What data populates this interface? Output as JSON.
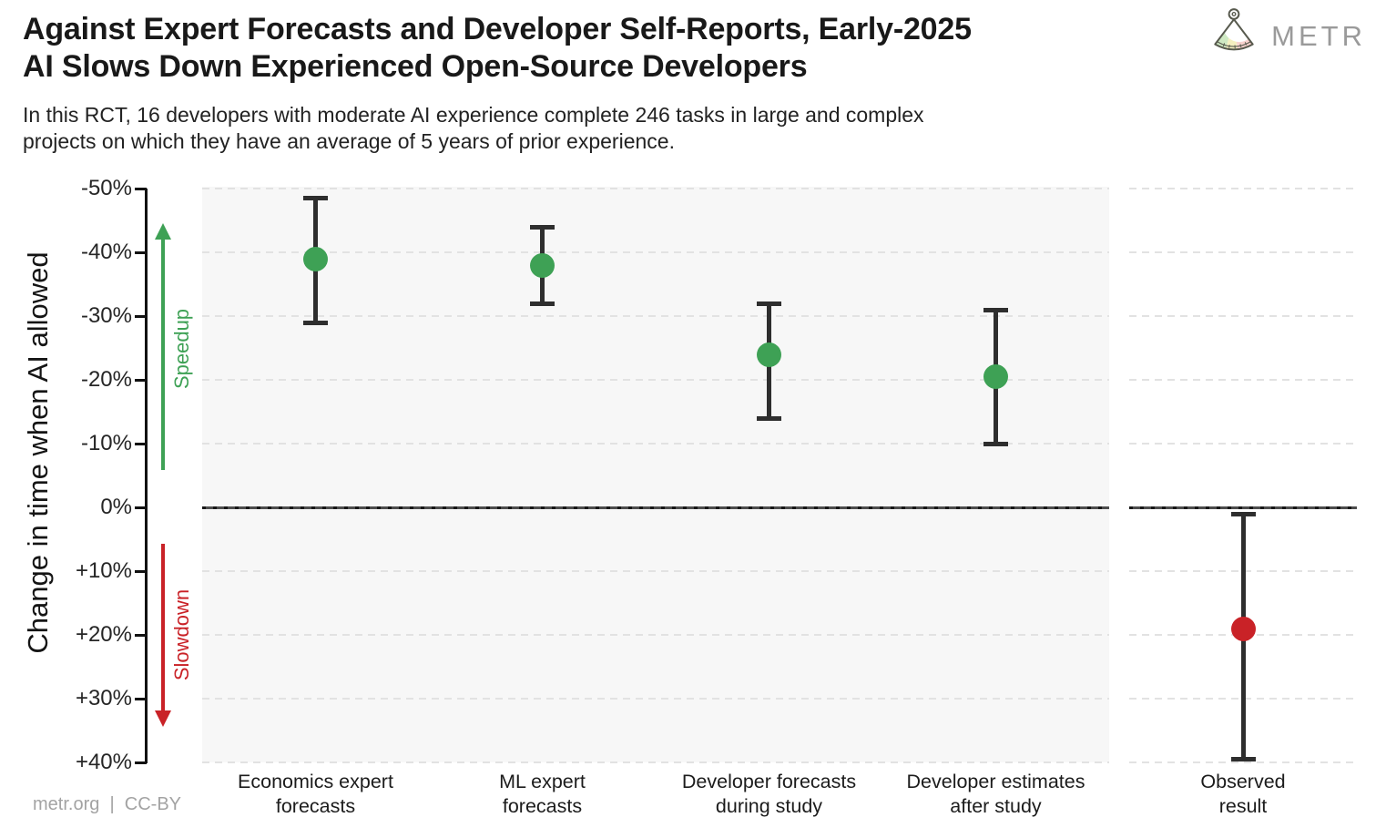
{
  "header": {
    "title_line1": "Against Expert Forecasts and Developer Self-Reports, Early-2025",
    "title_line2": "AI Slows Down Experienced Open-Source Developers",
    "subtitle_line1": "In this RCT, 16 developers with moderate AI experience complete 246 tasks in large and complex",
    "subtitle_line2": "projects on which they have an average of 5 years of prior experience.",
    "brand_name": "METR"
  },
  "footer": {
    "attribution": "metr.org  |  CC-BY"
  },
  "colors": {
    "point_green": "#3EA155",
    "point_red": "#C92227",
    "panel_background": "#F7F7F7",
    "gridline": "#E2E2E2",
    "error_bar": "#2E2E2E",
    "brand_gray": "#9A9A9A"
  },
  "chart_data": {
    "type": "scatter",
    "title": "Against Expert Forecasts and Developer Self-Reports, Early-2025 AI Slows Down Experienced Open-Source Developers",
    "subtitle": "In this RCT, 16 developers with moderate AI experience complete 246 tasks in large and complex projects on which they have an average of 5 years of prior experience.",
    "ylabel": "Change in time when AI allowed",
    "ylim": [
      -50,
      40
    ],
    "axis_orientation": "inverted: -50% (speedup) at top, +40% (slowdown) at bottom",
    "grid": "horizontal dashed gridlines; dark dashed baseline at 0%",
    "legend_position": "none",
    "yticks": [
      {
        "value": -50,
        "label": "-50%"
      },
      {
        "value": -40,
        "label": "-40%"
      },
      {
        "value": -30,
        "label": "-30%"
      },
      {
        "value": -20,
        "label": "-20%"
      },
      {
        "value": -10,
        "label": "-10%"
      },
      {
        "value": 0,
        "label": "0%"
      },
      {
        "value": 10,
        "label": "+10%"
      },
      {
        "value": 20,
        "label": "+20%"
      },
      {
        "value": 30,
        "label": "+30%"
      },
      {
        "value": 40,
        "label": "+40%"
      }
    ],
    "annotations": {
      "speedup_label": "Speedup",
      "slowdown_label": "Slowdown",
      "speedup_color": "#3EA155",
      "slowdown_color": "#C92227"
    },
    "points": [
      {
        "category": "Economics expert forecasts",
        "category_lines": [
          "Economics expert",
          "forecasts"
        ],
        "value": -39,
        "ci": [
          -48.5,
          -29
        ],
        "color": "#3EA155",
        "panel": "main"
      },
      {
        "category": "ML expert forecasts",
        "category_lines": [
          "ML expert",
          "forecasts"
        ],
        "value": -38,
        "ci": [
          -44,
          -32
        ],
        "color": "#3EA155",
        "panel": "main"
      },
      {
        "category": "Developer forecasts during study",
        "category_lines": [
          "Developer forecasts",
          "during study"
        ],
        "value": -24,
        "ci": [
          -32,
          -14
        ],
        "color": "#3EA155",
        "panel": "main"
      },
      {
        "category": "Developer estimates after study",
        "category_lines": [
          "Developer estimates",
          "after study"
        ],
        "value": -20.5,
        "ci": [
          -31,
          -10
        ],
        "color": "#3EA155",
        "panel": "main"
      },
      {
        "category": "Observed result",
        "category_lines": [
          "Observed",
          "result"
        ],
        "value": 19,
        "ci": [
          1,
          39.5
        ],
        "color": "#C92227",
        "panel": "right"
      }
    ]
  }
}
